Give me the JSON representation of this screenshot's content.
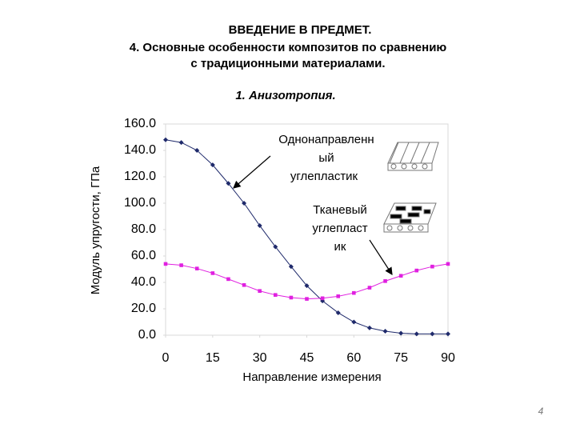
{
  "slide": {
    "heading": "ВВЕДЕНИЕ В ПРЕДМЕТ.",
    "subheading_lines": [
      "4. Основные особенности композитов по сравнению",
      "с традиционными материалами."
    ],
    "section": "1. Анизотропия.",
    "page_number": "4"
  },
  "chart_data": {
    "type": "line",
    "x_label": "Направление измерения",
    "y_label": "Модуль упругости, ГПа",
    "x": [
      0,
      5,
      10,
      15,
      20,
      25,
      30,
      35,
      40,
      45,
      50,
      55,
      60,
      65,
      70,
      75,
      80,
      85,
      90
    ],
    "series": [
      {
        "color": "#1f2a6b",
        "marker": "diamond",
        "values": [
          148,
          146,
          140,
          129,
          115,
          100,
          83,
          67,
          52,
          37.5,
          26,
          17,
          10,
          5.5,
          3,
          1.5,
          1,
          1,
          1
        ]
      },
      {
        "color": "#e020e0",
        "marker": "square",
        "values": [
          54,
          53,
          50.5,
          47,
          42.5,
          38,
          33.5,
          30.5,
          28.5,
          27.5,
          28,
          29.5,
          32,
          36,
          41,
          45,
          49,
          52,
          54
        ]
      }
    ],
    "annotations": [
      {
        "lines": [
          "Однонаправленн",
          "ый",
          "углепластик"
        ]
      },
      {
        "lines": [
          "Тканевый",
          "углепласт",
          "ик"
        ]
      }
    ],
    "xlim": [
      0,
      90
    ],
    "xticks": [
      0,
      15,
      30,
      45,
      60,
      75,
      90
    ],
    "ylim": [
      0,
      160
    ],
    "yticks": [
      {
        "value": 0,
        "label": "0.0"
      },
      {
        "value": 20,
        "label": "20.0"
      },
      {
        "value": 40,
        "label": "40.0"
      },
      {
        "value": 60,
        "label": "60.0"
      },
      {
        "value": 80,
        "label": "80.0"
      },
      {
        "value": 100,
        "label": "100.0"
      },
      {
        "value": 120,
        "label": "120.0"
      },
      {
        "value": 140,
        "label": "140.0"
      },
      {
        "value": 160,
        "label": "160.0"
      }
    ],
    "grid": false
  }
}
